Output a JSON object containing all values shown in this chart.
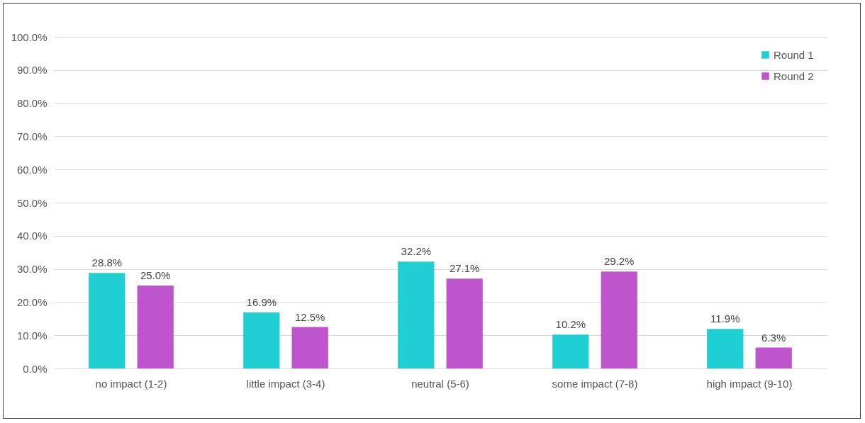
{
  "chart_data": {
    "type": "bar",
    "categories": [
      "no impact (1-2)",
      "little impact (3-4)",
      "neutral (5-6)",
      "some impact (7-8)",
      "high impact (9-10)"
    ],
    "series": [
      {
        "name": "Round 1",
        "color": "#1fcfd4",
        "values": [
          28.8,
          16.9,
          32.2,
          10.2,
          11.9
        ],
        "value_labels": [
          "28.8%",
          "16.9%",
          "32.2%",
          "10.2%",
          "11.9%"
        ]
      },
      {
        "name": "Round 2",
        "color": "#bf55cc",
        "values": [
          25.0,
          12.5,
          27.1,
          29.2,
          6.3
        ],
        "value_labels": [
          "25.0%",
          "12.5%",
          "27.1%",
          "29.2%",
          "6.3%"
        ]
      }
    ],
    "ylim": [
      0,
      100
    ],
    "yticks": [
      {
        "value": 0,
        "label": "0.0%"
      },
      {
        "value": 10,
        "label": "10.0%"
      },
      {
        "value": 20,
        "label": "20.0%"
      },
      {
        "value": 30,
        "label": "30.0%"
      },
      {
        "value": 40,
        "label": "40.0%"
      },
      {
        "value": 50,
        "label": "50.0%"
      },
      {
        "value": 60,
        "label": "60.0%"
      },
      {
        "value": 70,
        "label": "70.0%"
      },
      {
        "value": 80,
        "label": "80.0%"
      },
      {
        "value": 90,
        "label": "90.0%"
      },
      {
        "value": 100,
        "label": "100.0%"
      }
    ],
    "grid": "y",
    "legend": "top right"
  }
}
